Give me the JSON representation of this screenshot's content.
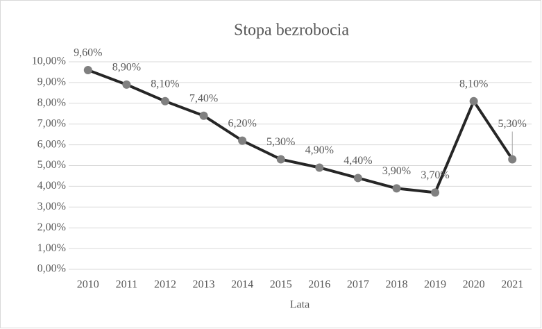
{
  "chart_data": {
    "type": "line",
    "title": "Stopa bezrobocia",
    "x_label": "Lata",
    "categories": [
      "2010",
      "2011",
      "2012",
      "2013",
      "2014",
      "2015",
      "2016",
      "2017",
      "2018",
      "2019",
      "2020",
      "2021"
    ],
    "series": [
      {
        "name": "Stopa bezrobocia",
        "color": "#262626",
        "marker_color": "#808080",
        "values": [
          9.6,
          8.9,
          8.1,
          7.4,
          6.2,
          5.3,
          4.9,
          4.4,
          3.9,
          3.7,
          8.1,
          5.3
        ],
        "value_labels": [
          "9,60%",
          "8,90%",
          "8,10%",
          "7,40%",
          "6,20%",
          "5,30%",
          "4,90%",
          "4,40%",
          "3,90%",
          "3,70%",
          "8,10%",
          "5,30%"
        ]
      }
    ],
    "ylim": [
      0,
      10
    ],
    "yticks": [
      {
        "value": 0,
        "label": "0,00%"
      },
      {
        "value": 1,
        "label": "1,00%"
      },
      {
        "value": 2,
        "label": "2,00%"
      },
      {
        "value": 3,
        "label": "3,00%"
      },
      {
        "value": 4,
        "label": "4,00%"
      },
      {
        "value": 5,
        "label": "5,00%"
      },
      {
        "value": 6,
        "label": "6,00%"
      },
      {
        "value": 7,
        "label": "7,00%"
      },
      {
        "value": 8,
        "label": "8,00%"
      },
      {
        "value": 9,
        "label": "9,00%"
      },
      {
        "value": 10,
        "label": "10,00%"
      }
    ],
    "grid": true
  }
}
